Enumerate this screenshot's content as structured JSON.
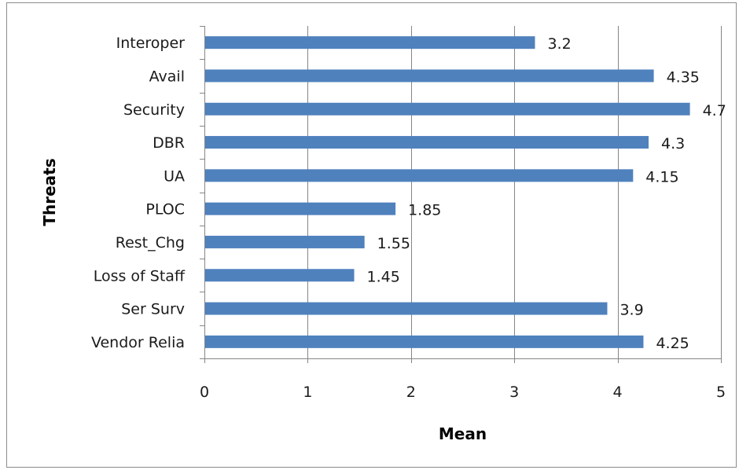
{
  "chart_data": {
    "type": "bar",
    "orientation": "horizontal",
    "categories": [
      "Interoper",
      "Avail",
      "Security",
      "DBR",
      "UA",
      "PLOC",
      "Rest_Chg",
      "Loss of Staff",
      "Ser Surv",
      "Vendor Relia"
    ],
    "values": [
      3.2,
      4.35,
      4.7,
      4.3,
      4.15,
      1.85,
      1.55,
      1.45,
      3.9,
      4.25
    ],
    "data_labels": [
      "3.2",
      "4.35",
      "4.7",
      "4.3",
      "4.15",
      "1.85",
      "1.55",
      "1.45",
      "3.9",
      "4.25"
    ],
    "xlabel": "Mean",
    "ylabel": "Threats",
    "xlim": [
      0,
      5
    ],
    "xticks": [
      0,
      1,
      2,
      3,
      4,
      5
    ],
    "xtick_labels": [
      "0",
      "1",
      "2",
      "3",
      "4",
      "5"
    ],
    "grid": "vertical",
    "legend": "none",
    "bar_color": "#4f81bd",
    "grid_color": "#868686"
  }
}
